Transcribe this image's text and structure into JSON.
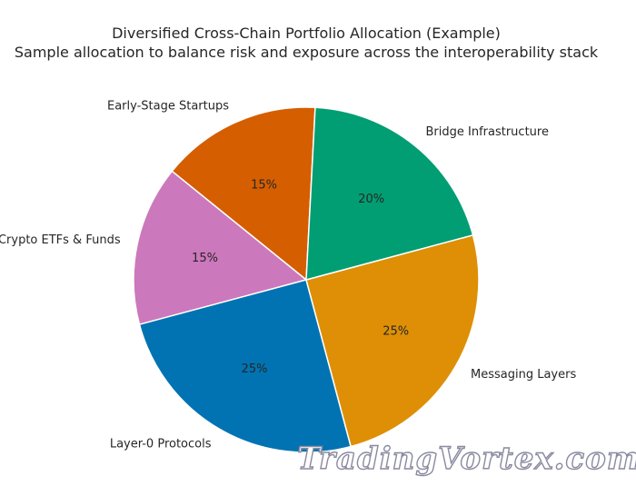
{
  "chart_data": {
    "type": "pie",
    "title": "Diversified Cross-Chain Portfolio Allocation (Example)",
    "subtitle": "Sample allocation to balance risk and exposure across the interoperability stack",
    "start_angle_deg": 87,
    "direction": "counterclockwise",
    "slices": [
      {
        "label": "Early-Stage Startups",
        "value": 15,
        "pct_label": "15%",
        "color": "#d55e00"
      },
      {
        "label": "Crypto ETFs & Funds",
        "value": 15,
        "pct_label": "15%",
        "color": "#cc78bc"
      },
      {
        "label": "Layer-0 Protocols",
        "value": 25,
        "pct_label": "25%",
        "color": "#0173b2"
      },
      {
        "label": "Messaging Layers",
        "value": 25,
        "pct_label": "25%",
        "color": "#de8f05"
      },
      {
        "label": "Bridge Infrastructure",
        "value": 20,
        "pct_label": "20%",
        "color": "#029e73"
      }
    ]
  },
  "watermark": "TradingVortex.com"
}
